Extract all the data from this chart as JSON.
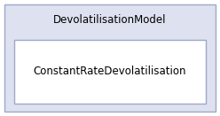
{
  "outer_label": "DevolatilisationModel",
  "inner_label": "ConstantRateDevolatilisation",
  "outer_bg": "#dde1f0",
  "inner_bg": "#ffffff",
  "outer_edge": "#9fa8c8",
  "inner_edge": "#9fa8c8",
  "fig_bg": "#ffffff",
  "outer_font_size": 8.5,
  "inner_font_size": 8.5
}
